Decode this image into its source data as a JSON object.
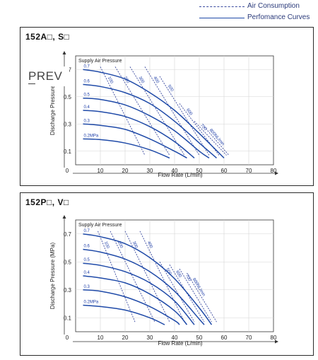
{
  "legend": {
    "air_consumption_label": "Air Consumption",
    "performance_label": "Perfomance Curves",
    "air_color": "#3a4aa0",
    "performance_color": "#1f4aa8"
  },
  "prev_button": {
    "label": "PREV"
  },
  "chart_data": [
    {
      "type": "line",
      "title": "152A□, S□",
      "xlabel": "Flow Rate (L/min)",
      "ylabel": "Discharge Pressure",
      "xlim": [
        0,
        80
      ],
      "ylim": [
        0,
        0.8
      ],
      "x_ticks": [
        0,
        10,
        20,
        30,
        40,
        50,
        60,
        70,
        80
      ],
      "y_ticks": [
        0.1,
        0.3,
        0.5,
        0.7
      ],
      "supply_label": "Supply Air Pressure",
      "series": [
        {
          "name": "0.7",
          "x": [
            3,
            10,
            20,
            30,
            40,
            50,
            60
          ],
          "y": [
            0.7,
            0.68,
            0.63,
            0.53,
            0.4,
            0.23,
            0.05
          ]
        },
        {
          "name": "0.6",
          "x": [
            3,
            10,
            20,
            30,
            40,
            50,
            57
          ],
          "y": [
            0.59,
            0.575,
            0.53,
            0.45,
            0.32,
            0.16,
            0.05
          ]
        },
        {
          "name": "0.5",
          "x": [
            3,
            10,
            20,
            30,
            40,
            50,
            54
          ],
          "y": [
            0.49,
            0.48,
            0.44,
            0.36,
            0.25,
            0.1,
            0.05
          ]
        },
        {
          "name": "0.4",
          "x": [
            3,
            10,
            20,
            30,
            40,
            48
          ],
          "y": [
            0.4,
            0.39,
            0.355,
            0.28,
            0.17,
            0.05
          ]
        },
        {
          "name": "0.3",
          "x": [
            3,
            10,
            20,
            30,
            40,
            45
          ],
          "y": [
            0.3,
            0.29,
            0.26,
            0.19,
            0.1,
            0.05
          ]
        },
        {
          "name": "0.2MPa",
          "x": [
            3,
            10,
            20,
            30,
            38
          ],
          "y": [
            0.19,
            0.185,
            0.16,
            0.11,
            0.05
          ]
        }
      ],
      "air_consumption": [
        {
          "name": "100",
          "x": [
            10,
            28
          ],
          "y": [
            0.72,
            0.07
          ]
        },
        {
          "name": "200",
          "x": [
            16,
            38
          ],
          "y": [
            0.72,
            0.07
          ]
        },
        {
          "name": "300",
          "x": [
            22,
            44
          ],
          "y": [
            0.72,
            0.07
          ]
        },
        {
          "name": "400",
          "x": [
            28,
            50
          ],
          "y": [
            0.72,
            0.07
          ]
        },
        {
          "name": "500",
          "x": [
            34,
            54
          ],
          "y": [
            0.65,
            0.07
          ]
        },
        {
          "name": "600",
          "x": [
            42,
            58
          ],
          "y": [
            0.45,
            0.07
          ]
        },
        {
          "name": "700",
          "x": [
            48,
            61
          ],
          "y": [
            0.32,
            0.07
          ]
        },
        {
          "name": "800NL/min",
          "x": [
            52,
            62
          ],
          "y": [
            0.28,
            0.07
          ]
        }
      ]
    },
    {
      "type": "line",
      "title": "152P□, V□",
      "xlabel": "Flow Rate (L/min)",
      "ylabel": "Discharge Pressure (MPa)",
      "xlim": [
        0,
        80
      ],
      "ylim": [
        0,
        0.8
      ],
      "x_ticks": [
        0,
        10,
        20,
        30,
        40,
        50,
        60,
        70,
        80
      ],
      "y_ticks": [
        0.1,
        0.3,
        0.5,
        0.7
      ],
      "supply_label": "Supply Air Pressure",
      "series": [
        {
          "name": "0.7",
          "x": [
            3,
            10,
            20,
            30,
            40,
            50,
            55
          ],
          "y": [
            0.7,
            0.68,
            0.63,
            0.53,
            0.38,
            0.17,
            0.05
          ]
        },
        {
          "name": "0.6",
          "x": [
            3,
            10,
            20,
            30,
            40,
            50,
            52
          ],
          "y": [
            0.59,
            0.57,
            0.52,
            0.43,
            0.29,
            0.09,
            0.05
          ]
        },
        {
          "name": "0.5",
          "x": [
            3,
            10,
            20,
            30,
            40,
            48
          ],
          "y": [
            0.49,
            0.475,
            0.43,
            0.35,
            0.22,
            0.05
          ]
        },
        {
          "name": "0.4",
          "x": [
            3,
            10,
            20,
            30,
            40,
            45
          ],
          "y": [
            0.4,
            0.385,
            0.35,
            0.27,
            0.15,
            0.05
          ]
        },
        {
          "name": "0.3",
          "x": [
            3,
            10,
            20,
            30,
            40,
            42
          ],
          "y": [
            0.3,
            0.29,
            0.25,
            0.18,
            0.08,
            0.05
          ]
        },
        {
          "name": "0.2MPa",
          "x": [
            3,
            10,
            20,
            30,
            36
          ],
          "y": [
            0.19,
            0.18,
            0.155,
            0.1,
            0.05
          ]
        }
      ],
      "air_consumption": [
        {
          "name": "100",
          "x": [
            9,
            24
          ],
          "y": [
            0.72,
            0.07
          ]
        },
        {
          "name": "200",
          "x": [
            14,
            32
          ],
          "y": [
            0.72,
            0.07
          ]
        },
        {
          "name": "300",
          "x": [
            20,
            38
          ],
          "y": [
            0.72,
            0.07
          ]
        },
        {
          "name": "400",
          "x": [
            26,
            44
          ],
          "y": [
            0.72,
            0.07
          ]
        },
        {
          "name": "500",
          "x": [
            34,
            48
          ],
          "y": [
            0.5,
            0.07
          ]
        },
        {
          "name": "600",
          "x": [
            38,
            52
          ],
          "y": [
            0.48,
            0.07
          ]
        },
        {
          "name": "700",
          "x": [
            42,
            55
          ],
          "y": [
            0.45,
            0.07
          ]
        },
        {
          "name": "800NL/min",
          "x": [
            45,
            57
          ],
          "y": [
            0.42,
            0.07
          ]
        }
      ]
    }
  ]
}
